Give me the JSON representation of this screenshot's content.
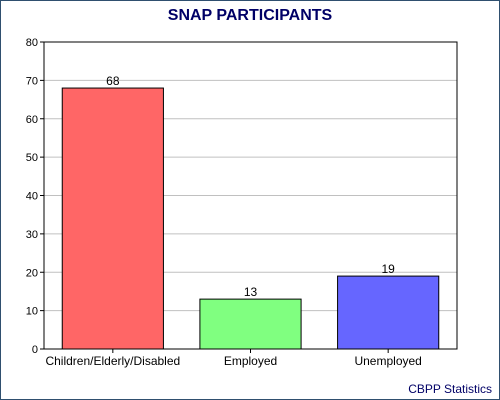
{
  "chart_data": {
    "type": "bar",
    "title": "SNAP PARTICIPANTS",
    "categories": [
      "Children/Elderly/Disabled",
      "Employed",
      "Unemployed"
    ],
    "values": [
      68,
      13,
      19
    ],
    "colors": [
      "#ff6666",
      "#80ff80",
      "#6666ff"
    ],
    "ylim": [
      0,
      80
    ],
    "yticks": [
      0,
      10,
      20,
      30,
      40,
      50,
      60,
      70,
      80
    ],
    "grid": true,
    "legend": "none"
  },
  "footer": "CBPP Statistics"
}
